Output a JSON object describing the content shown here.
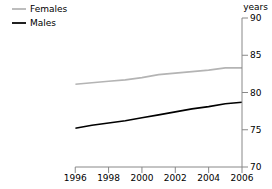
{
  "chart_data": {
    "type": "line",
    "y_label": "years",
    "x": [
      1996,
      1997,
      1998,
      1999,
      2000,
      2001,
      2002,
      2003,
      2004,
      2005,
      2006
    ],
    "series": [
      {
        "name": "Males",
        "color": "#000000",
        "values": [
          75.2,
          75.6,
          75.9,
          76.2,
          76.6,
          77.0,
          77.4,
          77.8,
          78.1,
          78.5,
          78.7
        ]
      },
      {
        "name": "Females",
        "color": "#b4b4b4",
        "values": [
          81.1,
          81.3,
          81.5,
          81.7,
          82.0,
          82.4,
          82.6,
          82.8,
          83.0,
          83.3,
          83.3
        ]
      }
    ],
    "xlim": [
      1996,
      2006
    ],
    "xticks": [
      1996,
      1998,
      2000,
      2002,
      2004,
      2006
    ],
    "ylim": [
      70,
      90
    ],
    "yticks": [
      70,
      75,
      80,
      85,
      90
    ],
    "legend": "upper left",
    "grid": false
  }
}
